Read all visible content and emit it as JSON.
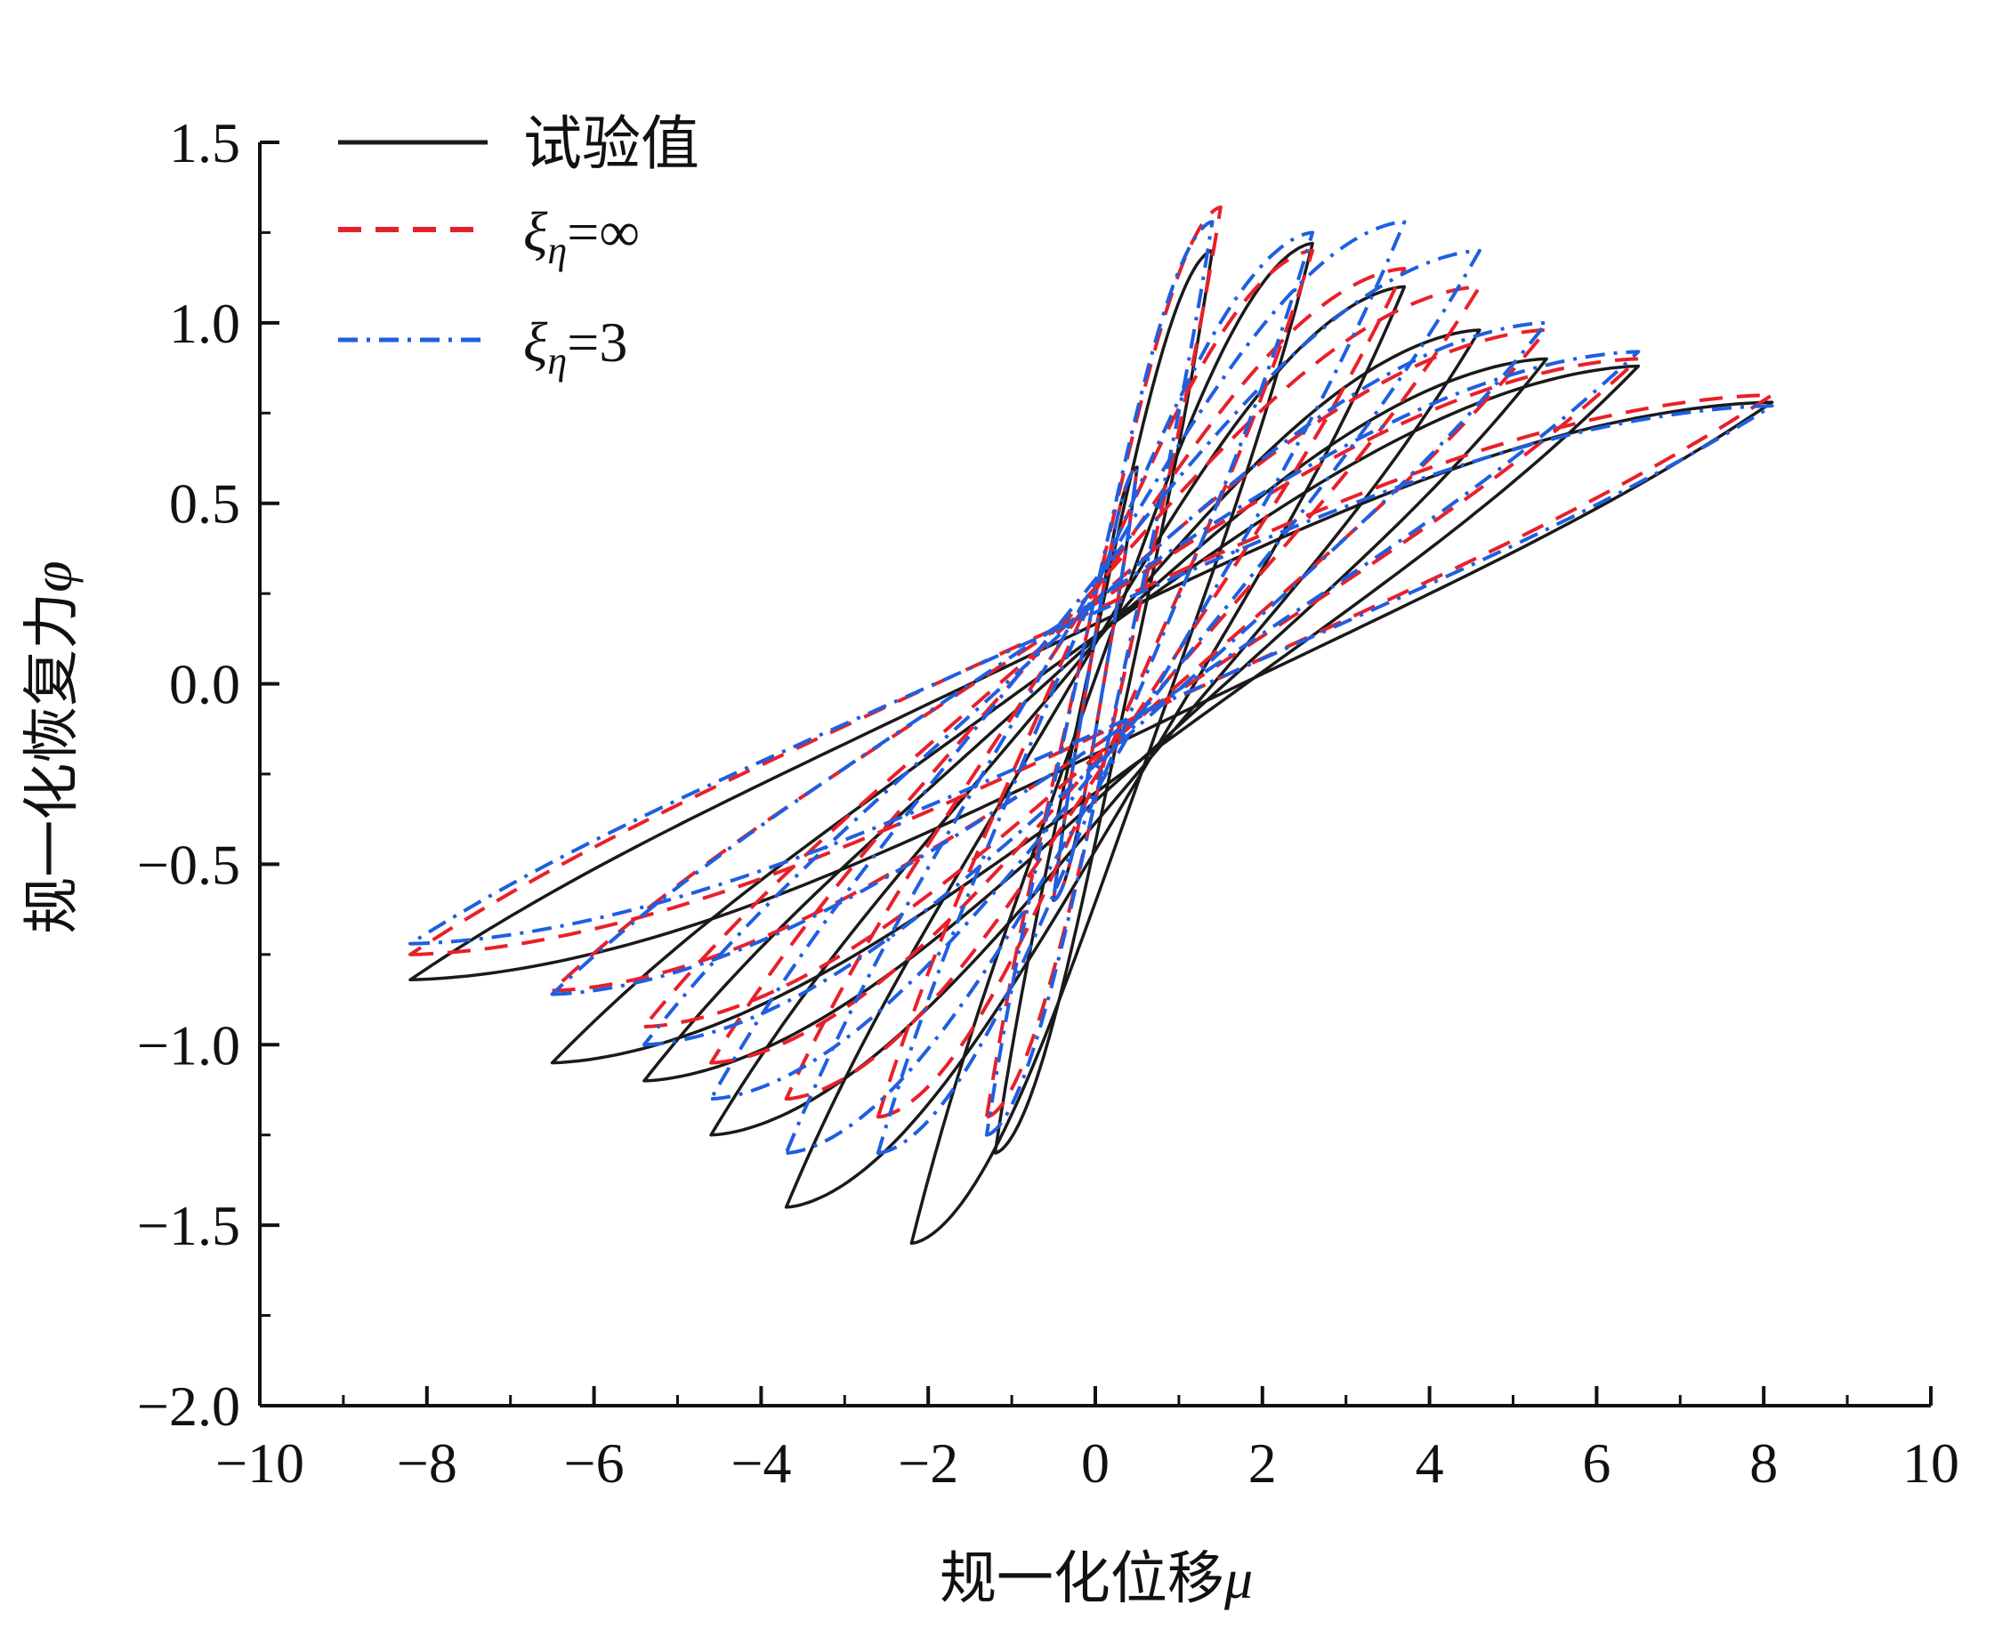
{
  "chart_data": {
    "type": "line",
    "title": "",
    "xlabel": "规一化位移",
    "xlabel_symbol": "μ",
    "ylabel": "规一化恢复力",
    "ylabel_symbol": "φ",
    "xlim": [
      -10,
      10
    ],
    "ylim": [
      -2.0,
      1.5
    ],
    "xticks": [
      -10,
      -8,
      -6,
      -4,
      -2,
      0,
      2,
      4,
      6,
      8,
      10
    ],
    "yticks": [
      -2.0,
      -1.5,
      -1.0,
      -0.5,
      0.0,
      0.5,
      1.0,
      1.5
    ],
    "xtick_labels": [
      "−10",
      "−8",
      "−6",
      "−4",
      "−2",
      "0",
      "2",
      "4",
      "6",
      "8",
      "10"
    ],
    "ytick_labels": [
      "−2.0",
      "−1.5",
      "−1.0",
      "−0.5",
      "0.0",
      "0.5",
      "1.0",
      "1.5"
    ],
    "grid": false,
    "legend_position": "top-left",
    "legend": [
      {
        "label": "试验值",
        "style": "solid",
        "color": "#1a1a1a"
      },
      {
        "label_symbol": "ξ",
        "label_subscript": "η",
        "label_value": "=∞",
        "style": "dashed",
        "color": "#e8202a"
      },
      {
        "label_symbol": "ξ",
        "label_subscript": "η",
        "label_value": "=3",
        "style": "dashdot",
        "color": "#1f5fe0"
      }
    ],
    "series": [
      {
        "key": "test",
        "color": "#1a1a1a",
        "style": "solid",
        "loops": [
          {
            "xmax": 0.5,
            "ymax": 0.6,
            "xmin": -0.5,
            "ymin": -0.6
          },
          {
            "xmax": 1.4,
            "ymax": 1.2,
            "xmin": -1.2,
            "ymin": -1.3
          },
          {
            "xmax": 2.6,
            "ymax": 1.22,
            "xmin": -2.2,
            "ymin": -1.55
          },
          {
            "xmax": 3.7,
            "ymax": 1.1,
            "xmin": -3.7,
            "ymin": -1.45
          },
          {
            "xmax": 4.6,
            "ymax": 0.98,
            "xmin": -4.6,
            "ymin": -1.25
          },
          {
            "xmax": 5.4,
            "ymax": 0.9,
            "xmin": -5.4,
            "ymin": -1.1
          },
          {
            "xmax": 6.5,
            "ymax": 0.88,
            "xmin": -6.5,
            "ymin": -1.05
          },
          {
            "xmax": 8.1,
            "ymax": 0.78,
            "xmin": -8.2,
            "ymin": -0.82
          }
        ]
      },
      {
        "key": "xi_inf",
        "color": "#e8202a",
        "style": "dashed",
        "loops": [
          {
            "xmax": 0.5,
            "ymax": 0.6,
            "xmin": -0.5,
            "ymin": -0.6
          },
          {
            "xmax": 1.5,
            "ymax": 1.32,
            "xmin": -1.3,
            "ymin": -1.2
          },
          {
            "xmax": 2.6,
            "ymax": 1.2,
            "xmin": -2.6,
            "ymin": -1.2
          },
          {
            "xmax": 3.7,
            "ymax": 1.15,
            "xmin": -3.7,
            "ymin": -1.15
          },
          {
            "xmax": 4.6,
            "ymax": 1.1,
            "xmin": -4.6,
            "ymin": -1.05
          },
          {
            "xmax": 5.4,
            "ymax": 0.98,
            "xmin": -5.4,
            "ymin": -0.95
          },
          {
            "xmax": 6.5,
            "ymax": 0.9,
            "xmin": -6.5,
            "ymin": -0.85
          },
          {
            "xmax": 8.1,
            "ymax": 0.8,
            "xmin": -8.2,
            "ymin": -0.75
          }
        ]
      },
      {
        "key": "xi_3",
        "color": "#1f5fe0",
        "style": "dashdot",
        "loops": [
          {
            "xmax": 0.5,
            "ymax": 0.6,
            "xmin": -0.5,
            "ymin": -0.6
          },
          {
            "xmax": 1.4,
            "ymax": 1.28,
            "xmin": -1.3,
            "ymin": -1.25
          },
          {
            "xmax": 2.6,
            "ymax": 1.25,
            "xmin": -2.6,
            "ymin": -1.3
          },
          {
            "xmax": 3.7,
            "ymax": 1.28,
            "xmin": -3.7,
            "ymin": -1.3
          },
          {
            "xmax": 4.6,
            "ymax": 1.2,
            "xmin": -4.6,
            "ymin": -1.15
          },
          {
            "xmax": 5.4,
            "ymax": 1.0,
            "xmin": -5.4,
            "ymin": -1.0
          },
          {
            "xmax": 6.5,
            "ymax": 0.92,
            "xmin": -6.5,
            "ymin": -0.86
          },
          {
            "xmax": 8.1,
            "ymax": 0.77,
            "xmin": -8.2,
            "ymin": -0.72
          }
        ]
      }
    ]
  }
}
